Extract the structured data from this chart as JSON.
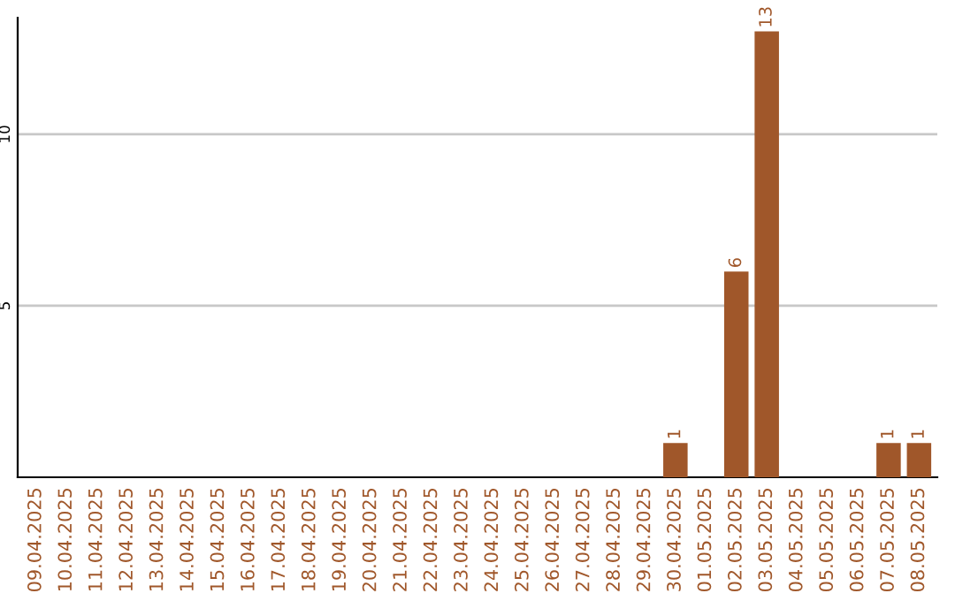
{
  "chart_data": {
    "type": "bar",
    "categories": [
      "09.04.2025",
      "10.04.2025",
      "11.04.2025",
      "12.04.2025",
      "13.04.2025",
      "14.04.2025",
      "15.04.2025",
      "16.04.2025",
      "17.04.2025",
      "18.04.2025",
      "19.04.2025",
      "20.04.2025",
      "21.04.2025",
      "22.04.2025",
      "23.04.2025",
      "24.04.2025",
      "25.04.2025",
      "26.04.2025",
      "27.04.2025",
      "28.04.2025",
      "29.04.2025",
      "30.04.2025",
      "01.05.2025",
      "02.05.2025",
      "03.05.2025",
      "04.05.2025",
      "05.05.2025",
      "06.05.2025",
      "07.05.2025",
      "08.05.2025"
    ],
    "values": [
      0,
      0,
      0,
      0,
      0,
      0,
      0,
      0,
      0,
      0,
      0,
      0,
      0,
      0,
      0,
      0,
      0,
      0,
      0,
      0,
      0,
      1,
      0,
      6,
      13,
      0,
      0,
      0,
      1,
      1
    ],
    "value_labels": [
      null,
      null,
      null,
      null,
      null,
      null,
      null,
      null,
      null,
      null,
      null,
      null,
      null,
      null,
      null,
      null,
      null,
      null,
      null,
      null,
      null,
      "1",
      null,
      "6",
      "13",
      null,
      null,
      null,
      "1",
      "1"
    ],
    "color": "#a0572a",
    "ylim": [
      0,
      13.4
    ],
    "yticks": [
      5,
      10
    ],
    "grid": "y",
    "legend": false
  }
}
